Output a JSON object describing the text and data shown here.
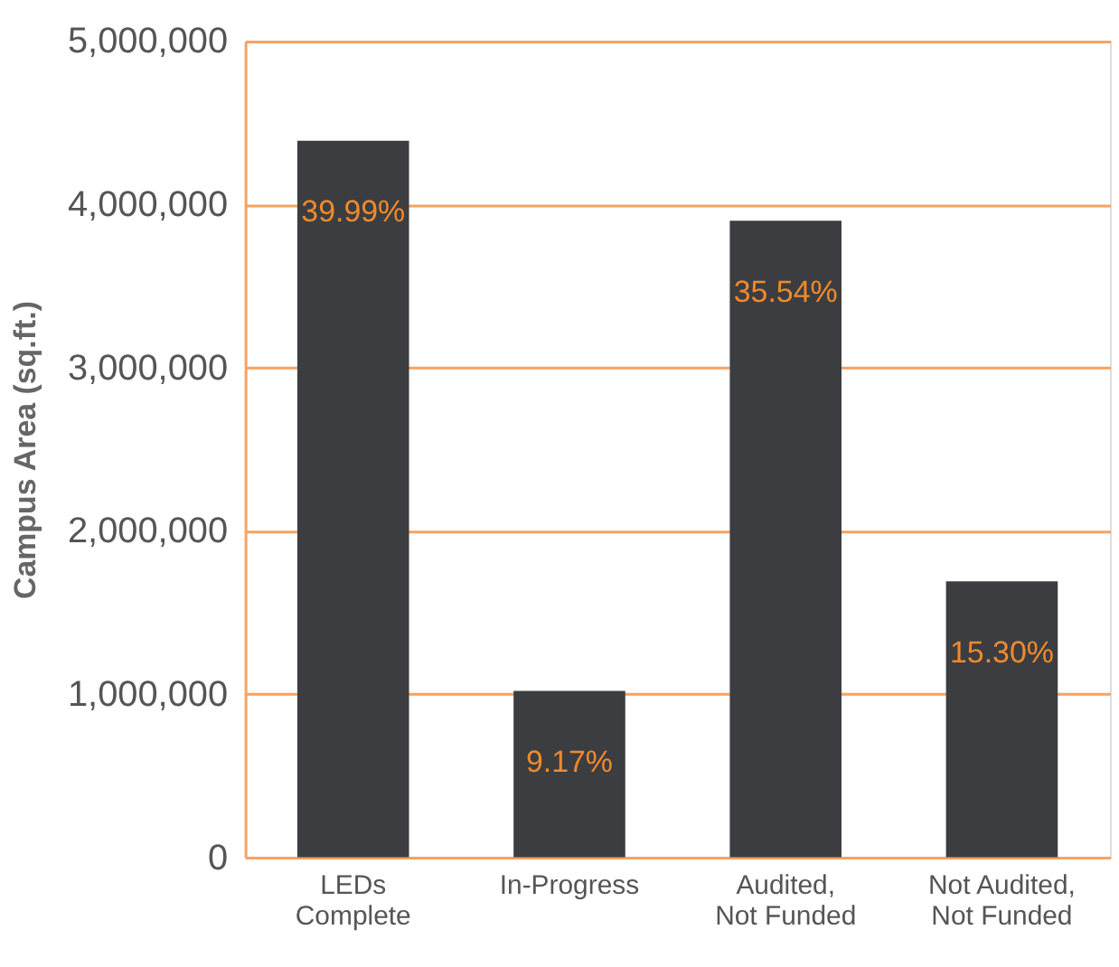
{
  "chart_data": {
    "type": "bar",
    "ylabel": "Campus Area (sq.ft.)",
    "categories": [
      "LEDs\nComplete",
      "In-Progress",
      "Audited,\nNot Funded",
      "Not Audited,\nNot Funded"
    ],
    "values": [
      4390000,
      1020000,
      3900000,
      1690000
    ],
    "annotations": [
      {
        "text": "39.99%",
        "x": "LEDs\nComplete",
        "y": 4390000
      },
      {
        "text": "9.17%",
        "x": "In-Progress",
        "y": 1020000
      },
      {
        "text": "35.54%",
        "x": "Audited,\nNot Funded",
        "y": 3900000
      },
      {
        "text": "15.30%",
        "x": "Not Audited,\nNot Funded",
        "y": 1690000
      }
    ],
    "color": "#3c3d41",
    "ylim": [
      0,
      5000000
    ],
    "yticks": [
      0,
      {
        "value": 1000000,
        "label": "1,000,000"
      },
      {
        "value": 2000000,
        "label": "2,000,000"
      },
      {
        "value": 3000000,
        "label": "3,000,000"
      },
      {
        "value": 4000000,
        "label": "4,000,000"
      },
      {
        "value": 5000000,
        "label": "5,000,000"
      }
    ],
    "grid": "y"
  }
}
